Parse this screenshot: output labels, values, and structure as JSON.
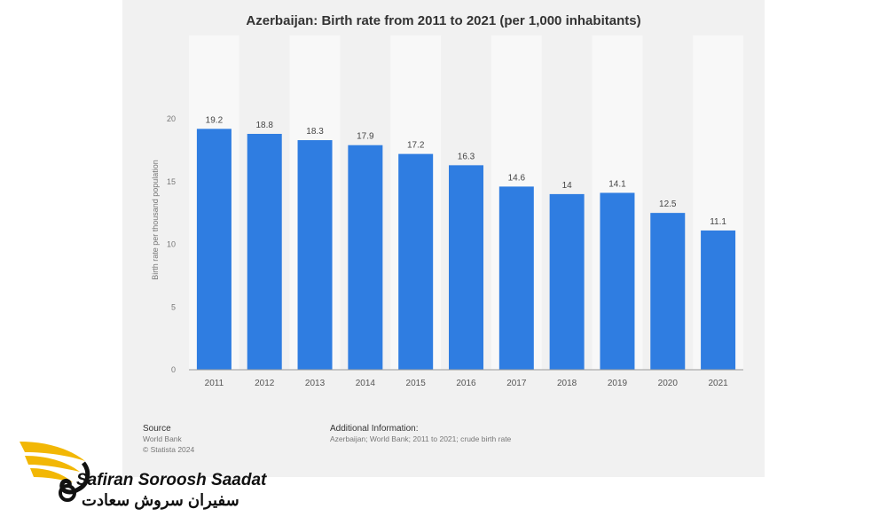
{
  "chart_data": {
    "type": "bar",
    "title": "Azerbaijan: Birth rate from 2011 to 2021 (per 1,000 inhabitants)",
    "ylabel": "Birth rate per thousand population",
    "xlabel": "",
    "categories": [
      "2011",
      "2012",
      "2013",
      "2014",
      "2015",
      "2016",
      "2017",
      "2018",
      "2019",
      "2020",
      "2021"
    ],
    "values": [
      19.2,
      18.8,
      18.3,
      17.9,
      17.2,
      16.3,
      14.6,
      14,
      14.1,
      12.5,
      11.1
    ],
    "value_labels": [
      "19.2",
      "18.8",
      "18.3",
      "17.9",
      "17.2",
      "16.3",
      "14.6",
      "14",
      "14.1",
      "12.5",
      "11.1"
    ],
    "ylim": [
      0,
      20
    ],
    "yticks": [
      "0",
      "5",
      "10",
      "15",
      "20"
    ],
    "grid": "alternating column bands",
    "bar_color": "#2f7de1",
    "legend": "none"
  },
  "source": {
    "title": "Source",
    "line1": "World Bank",
    "line2": "© Statista 2024"
  },
  "additional": {
    "title": "Additional Information:",
    "text": "Azerbaijan; World Bank; 2011 to 2021; crude birth rate"
  },
  "watermark": {
    "logo_name": "wing-logo-icon",
    "brand_latin": "Safiran Soroosh Saadat",
    "brand_persian": "سفیران سروش سعادت",
    "brand_color": "#f2b705"
  }
}
